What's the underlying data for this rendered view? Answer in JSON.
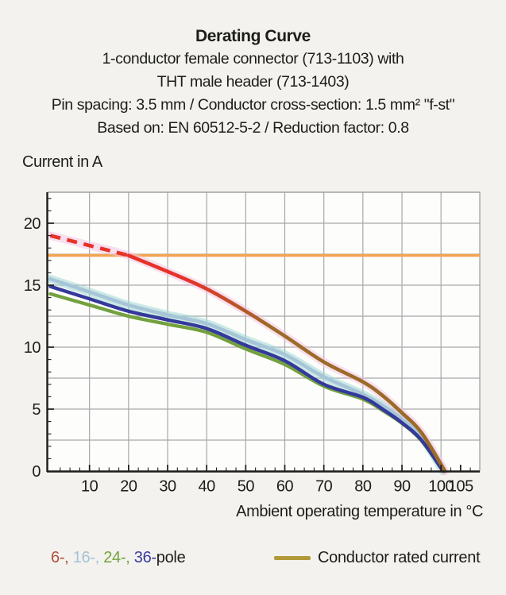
{
  "title": "Derating Curve",
  "subtitle_lines": [
    "1-conductor female connector (713-1103) with",
    "THT male header (713-1403)",
    "Pin spacing: 3.5 mm / Conductor cross-section: 1.5 mm² \"f-st\"",
    "Based on: EN 60512-5-2 / Reduction factor: 0.8"
  ],
  "y_axis_label": "Current in A",
  "x_axis_label": "Ambient operating temperature in °C",
  "legend": {
    "pole_segments": [
      {
        "text": "6-, ",
        "color": "#b0503b"
      },
      {
        "text": "16-, ",
        "color": "#a4c2d8"
      },
      {
        "text": "24-, ",
        "color": "#73a23e"
      },
      {
        "text": "36-",
        "color": "#3b3a9c"
      },
      {
        "text": "pole",
        "color": "#1d1d1b"
      }
    ],
    "rated": {
      "label": "Conductor rated current",
      "swatch_color": "#b29a3a"
    }
  },
  "chart_data": {
    "type": "line",
    "title": "Derating Curve",
    "xlabel": "Ambient operating temperature in °C",
    "ylabel": "Current in A",
    "xlim": [
      0,
      110
    ],
    "ylim": [
      0,
      22.5
    ],
    "x_ticks": [
      10,
      20,
      30,
      40,
      50,
      60,
      70,
      80,
      90,
      100,
      105
    ],
    "y_ticks": [
      0,
      5,
      10,
      15,
      20
    ],
    "x_grid_step": 10,
    "y_grid_step": 2.5,
    "x_minor_tick_step": 2.5,
    "y_minor_tick_step": 1,
    "grid": true,
    "legend_position": "bottom",
    "series": [
      {
        "name": "6-pole",
        "colors": [
          "#e6332a",
          "#9c6b28"
        ],
        "color_note": "red fading to brown with increasing temperature, pink glow",
        "glow": "#f4c2df",
        "glow_opacity": 0.5,
        "z": 4,
        "width": 4.6,
        "dash_until_x": 20,
        "x": [
          0,
          10,
          20,
          30,
          40,
          50,
          60,
          70,
          80,
          85,
          90,
          95,
          101
        ],
        "y": [
          19.0,
          18.2,
          17.4,
          16.1,
          14.7,
          12.9,
          10.9,
          8.8,
          7.2,
          6.1,
          4.7,
          3.1,
          0
        ]
      },
      {
        "name": "16-pole",
        "color": "#a7c4d8",
        "glow": "#9fd9d2",
        "glow_opacity": 0.55,
        "z": 2,
        "width": 4.5,
        "x": [
          0,
          10,
          20,
          30,
          40,
          50,
          60,
          70,
          80,
          85,
          90,
          95,
          100.5
        ],
        "y": [
          15.5,
          14.45,
          13.4,
          12.6,
          11.9,
          10.6,
          9.4,
          7.6,
          6.2,
          5.3,
          4.2,
          2.8,
          0
        ]
      },
      {
        "name": "36-pole",
        "color": "#34399b",
        "z": 3,
        "width": 4.4,
        "x": [
          0,
          10,
          20,
          30,
          40,
          50,
          60,
          70,
          80,
          85,
          90,
          95,
          100.5
        ],
        "y": [
          14.9,
          13.9,
          12.9,
          12.2,
          11.5,
          10.15,
          8.9,
          7.0,
          5.95,
          5.0,
          3.9,
          2.5,
          0
        ]
      },
      {
        "name": "24-pole",
        "color": "#72a13d",
        "z": 1,
        "width": 4.3,
        "x": [
          0,
          10,
          20,
          30,
          40,
          50,
          60,
          70,
          80,
          85,
          90,
          95,
          100.5
        ],
        "y": [
          14.3,
          13.4,
          12.5,
          11.85,
          11.2,
          9.85,
          8.6,
          6.85,
          5.8,
          4.9,
          3.85,
          2.45,
          0
        ]
      },
      {
        "name": "Conductor rated current",
        "color": "#f3a452",
        "hline": 17.4
      }
    ]
  }
}
